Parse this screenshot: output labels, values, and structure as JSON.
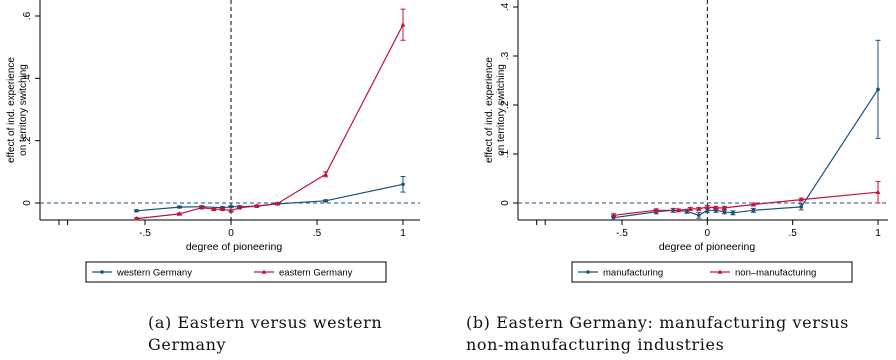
{
  "captions": {
    "a": "(a) Eastern versus western Germany",
    "b_line1": "(b) Eastern Germany: manufacturing versus",
    "b_line2": "non-manufacturing industries"
  },
  "chart_data": [
    {
      "type": "line",
      "title": "",
      "xlabel": "degree of pioneering",
      "ylabel": "effect of ind. experience on territory switching",
      "ylabel_lines": [
        "effect of ind. experience",
        "on territory switching"
      ],
      "xlim": [
        -1,
        1
      ],
      "ylim": [
        -0.05,
        0.6
      ],
      "x_ticks": [
        -0.5,
        0,
        0.5,
        1
      ],
      "x_tick_labels": [
        "-.5",
        "0",
        ".5",
        "1"
      ],
      "y_ticks": [
        0,
        0.2,
        0.4,
        0.6
      ],
      "y_tick_labels": [
        "0",
        ".2",
        ".4",
        ".6"
      ],
      "legend_position": "bottom",
      "reference_lines": {
        "vertical_x": 0,
        "horizontal_y": 0
      },
      "series": [
        {
          "name": "western Germany",
          "color": "#1f4e79",
          "marker": "circle",
          "x": [
            -0.55,
            -0.3,
            -0.17,
            -0.05,
            0.0,
            0.05,
            0.15,
            0.27,
            0.55,
            1.0
          ],
          "y": [
            -0.025,
            -0.013,
            -0.012,
            -0.015,
            -0.012,
            -0.012,
            -0.01,
            -0.003,
            0.007,
            0.06
          ],
          "err": [
            0.003,
            0.003,
            0.003,
            0.003,
            0.003,
            0.003,
            0.003,
            0.003,
            0.003,
            0.025
          ]
        },
        {
          "name": "eastern Germany",
          "color": "#c0143c",
          "marker": "triangle",
          "x": [
            -0.55,
            -0.3,
            -0.17,
            -0.1,
            -0.05,
            0.0,
            0.05,
            0.15,
            0.27,
            0.55,
            1.0
          ],
          "y": [
            -0.05,
            -0.035,
            -0.015,
            -0.02,
            -0.02,
            -0.025,
            -0.015,
            -0.01,
            -0.002,
            0.092,
            0.572
          ],
          "err": [
            0.003,
            0.003,
            0.003,
            0.003,
            0.003,
            0.003,
            0.003,
            0.003,
            0.003,
            0.008,
            0.05
          ]
        }
      ]
    },
    {
      "type": "line",
      "title": "",
      "xlabel": "degree of pioneering",
      "ylabel": "effect of ind. experience on territory switching",
      "ylabel_lines": [
        "effect of ind. experience",
        "on territory switching"
      ],
      "xlim": [
        -1,
        1
      ],
      "ylim": [
        -0.04,
        0.4
      ],
      "x_ticks": [
        -0.5,
        0,
        0.5,
        1
      ],
      "x_tick_labels": [
        "-.5",
        "0",
        ".5",
        "1"
      ],
      "y_ticks": [
        0,
        0.1,
        0.2,
        0.3,
        0.4
      ],
      "y_tick_labels": [
        "0",
        ".1",
        ".2",
        ".3",
        ".4"
      ],
      "legend_position": "bottom",
      "reference_lines": {
        "vertical_x": 0,
        "horizontal_y": 0
      },
      "series": [
        {
          "name": "manufacturing",
          "color": "#1f4e79",
          "marker": "circle",
          "x": [
            -0.55,
            -0.3,
            -0.2,
            -0.12,
            -0.05,
            0.0,
            0.05,
            0.1,
            0.15,
            0.27,
            0.55,
            1.0
          ],
          "y": [
            -0.03,
            -0.018,
            -0.015,
            -0.017,
            -0.025,
            -0.015,
            -0.015,
            -0.018,
            -0.02,
            -0.015,
            -0.008,
            0.232
          ],
          "err": [
            0.004,
            0.004,
            0.004,
            0.004,
            0.006,
            0.004,
            0.004,
            0.004,
            0.004,
            0.004,
            0.006,
            0.1
          ]
        },
        {
          "name": "non–manufacturing",
          "color": "#c0143c",
          "marker": "triangle",
          "x": [
            -0.55,
            -0.3,
            -0.17,
            -0.1,
            -0.05,
            0.0,
            0.05,
            0.1,
            0.27,
            0.55,
            1.0
          ],
          "y": [
            -0.025,
            -0.015,
            -0.015,
            -0.012,
            -0.012,
            -0.008,
            -0.01,
            -0.01,
            -0.003,
            0.007,
            0.022
          ],
          "err": [
            0.003,
            0.003,
            0.003,
            0.003,
            0.003,
            0.003,
            0.003,
            0.003,
            0.003,
            0.003,
            0.022
          ]
        }
      ]
    }
  ]
}
